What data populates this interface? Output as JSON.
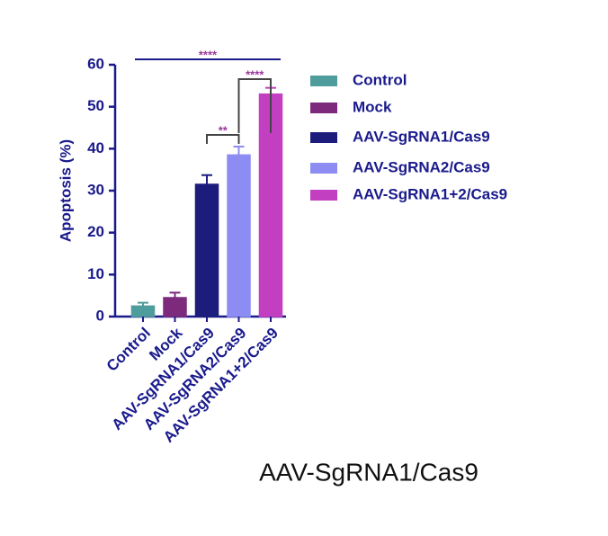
{
  "chart_data": {
    "type": "bar",
    "y_label": "Apoptosis (%)",
    "categories": [
      "Control",
      "Mock",
      "AAV-SgRNA1/Cas9",
      "AAV-SgRNA2/Cas9",
      "AAV-SgRNA1+2/Cas9"
    ],
    "values": [
      2.5,
      4.5,
      31.5,
      38.5,
      53
    ],
    "errors": [
      0.8,
      1.2,
      2.2,
      2,
      1.5
    ],
    "colors": [
      "#4f9c9c",
      "#7d2a7d",
      "#1c1c7c",
      "#8c8cf2",
      "#c23fc2"
    ],
    "ylim": [
      0,
      60
    ],
    "yticks": [
      0,
      10,
      20,
      30,
      40,
      50,
      60
    ],
    "annotations": [
      "****",
      "**",
      "****"
    ],
    "caption": "AAV-SgRNA1/Cas9"
  }
}
